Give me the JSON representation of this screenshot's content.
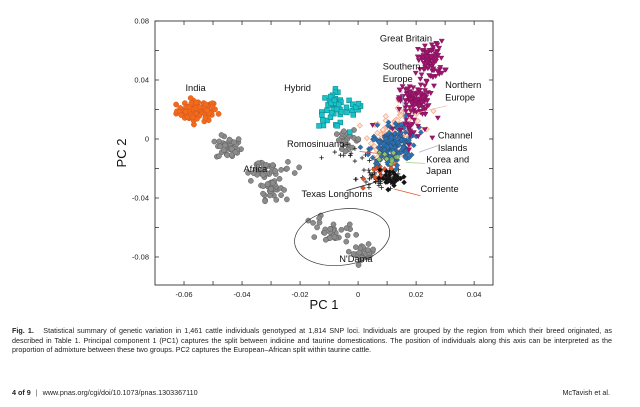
{
  "chart_data": {
    "type": "scatter",
    "title": "",
    "xlabel": "PC 1",
    "ylabel": "PC 2",
    "xlim": [
      -0.07,
      0.0465
    ],
    "ylim": [
      -0.099,
      0.08
    ],
    "grid": false,
    "xticks": [
      -0.06,
      -0.04,
      -0.02,
      0,
      0.02,
      0.04
    ],
    "xtick_labels": [
      "-0.06",
      "-0.04",
      "-0.02",
      "0",
      "0.02",
      "0.04"
    ],
    "xminor": [
      -0.05,
      -0.03,
      -0.01,
      0.01,
      0.03
    ],
    "yticks": [
      0.08,
      0.04,
      0,
      -0.04,
      -0.08
    ],
    "ytick_labels": [
      "0.08",
      "0.04",
      "0",
      "-0.04",
      "-0.08"
    ],
    "yminor": [
      0.06,
      0.02,
      -0.02,
      -0.06
    ],
    "series": [
      {
        "name": "India",
        "marker": "circle",
        "color": "#f26b1d",
        "clusters": [
          {
            "cx": -0.0555,
            "cy": 0.019,
            "sx": 0.0035,
            "sy": 0.0035,
            "n": 90
          }
        ]
      },
      {
        "name": "Africa",
        "marker": "circle",
        "color": "#8c8c8c",
        "clusters": [
          {
            "cx": -0.0445,
            "cy": -0.006,
            "sx": 0.0022,
            "sy": 0.004,
            "n": 40
          },
          {
            "cx": -0.0325,
            "cy": -0.02,
            "sx": 0.0025,
            "sy": 0.0035,
            "n": 30
          },
          {
            "cx": -0.03,
            "cy": -0.033,
            "sx": 0.002,
            "sy": 0.004,
            "n": 40
          },
          {
            "cx": -0.024,
            "cy": -0.02,
            "sx": 0.003,
            "sy": 0.002,
            "n": 8
          }
        ]
      },
      {
        "name": "N'Dama",
        "marker": "circle",
        "color": "#8c8c8c",
        "clusters": [
          {
            "cx": -0.009,
            "cy": -0.064,
            "sx": 0.003,
            "sy": 0.0035,
            "n": 30
          },
          {
            "cx": 0.002,
            "cy": -0.077,
            "sx": 0.0018,
            "sy": 0.0025,
            "n": 28
          },
          {
            "cx": -0.014,
            "cy": -0.055,
            "sx": 0.003,
            "sy": 0.004,
            "n": 6
          }
        ]
      },
      {
        "name": "Romosinuano",
        "marker": "circle",
        "color": "#8c8c8c",
        "clusters": [
          {
            "cx": -0.0035,
            "cy": -0.0005,
            "sx": 0.0022,
            "sy": 0.003,
            "n": 25
          }
        ]
      },
      {
        "name": "Hybrid",
        "marker": "square",
        "color": "#19c3c9",
        "clusters": [
          {
            "cx": -0.0085,
            "cy": 0.02,
            "sx": 0.0025,
            "sy": 0.006,
            "n": 45
          },
          {
            "cx": -0.001,
            "cy": 0.022,
            "sx": 0.0015,
            "sy": 0.005,
            "n": 12
          }
        ]
      },
      {
        "name": "Texas Longhorns",
        "marker": "plus",
        "color": "#222222",
        "clusters": [
          {
            "cx": 0.0075,
            "cy": -0.027,
            "sx": 0.004,
            "sy": 0.004,
            "n": 60
          },
          {
            "cx": -0.002,
            "cy": -0.01,
            "sx": 0.004,
            "sy": 0.003,
            "n": 14
          }
        ]
      },
      {
        "name": "Corriente",
        "marker": "diamond-filled",
        "color": "#e8532a",
        "clusters": [
          {
            "cx": 0.0085,
            "cy": -0.023,
            "sx": 0.003,
            "sy": 0.004,
            "n": 20
          }
        ]
      },
      {
        "name": "Southern Europe",
        "marker": "diamond-open",
        "color": "#f5a98a",
        "clusters": [
          {
            "cx": 0.012,
            "cy": 0.002,
            "sx": 0.004,
            "sy": 0.007,
            "n": 80
          },
          {
            "cx": 0.0165,
            "cy": 0.015,
            "sx": 0.003,
            "sy": 0.005,
            "n": 20
          }
        ]
      },
      {
        "name": "Channel Islands",
        "marker": "diamond-filled",
        "color": "#2a72b8",
        "clusters": [
          {
            "cx": 0.011,
            "cy": -0.007,
            "sx": 0.0035,
            "sy": 0.006,
            "n": 150
          },
          {
            "cx": 0.0145,
            "cy": 0.004,
            "sx": 0.003,
            "sy": 0.005,
            "n": 60
          }
        ]
      },
      {
        "name": "Korea and Japan",
        "marker": "diamond-filled",
        "color": "#8fc46a",
        "clusters": [
          {
            "cx": 0.009,
            "cy": -0.013,
            "sx": 0.002,
            "sy": 0.002,
            "n": 10
          }
        ]
      },
      {
        "name": "Northern Europe",
        "marker": "triangle-down",
        "color": "#a0166f",
        "clusters": [
          {
            "cx": 0.0195,
            "cy": 0.026,
            "sx": 0.0025,
            "sy": 0.005,
            "n": 110
          },
          {
            "cx": 0.025,
            "cy": 0.053,
            "sx": 0.0023,
            "sy": 0.0065,
            "n": 90
          },
          {
            "cx": 0.017,
            "cy": 0.007,
            "sx": 0.004,
            "sy": 0.006,
            "n": 25
          }
        ]
      },
      {
        "name": "Black admixed",
        "marker": "diamond-filled",
        "color": "#111111",
        "clusters": [
          {
            "cx": 0.0115,
            "cy": -0.0265,
            "sx": 0.0025,
            "sy": 0.0025,
            "n": 30
          }
        ]
      }
    ],
    "annotations": [
      {
        "text": "India",
        "x": -0.0595,
        "y": 0.0325,
        "line": null
      },
      {
        "text": "Hybrid",
        "x": -0.0255,
        "y": 0.0325,
        "line": null
      },
      {
        "text": "Great Britain",
        "x": 0.0075,
        "y": 0.066,
        "line": null
      },
      {
        "text": "Southern",
        "x": 0.0085,
        "y": 0.047,
        "line": [
          0.015,
          0.034,
          0.016,
          0.012
        ]
      },
      {
        "text": "Europe",
        "x": 0.0085,
        "y": 0.0385,
        "line": null
      },
      {
        "text": "Northern",
        "x": 0.03,
        "y": 0.0345,
        "line": [
          0.0305,
          0.0225,
          0.021,
          0.018
        ]
      },
      {
        "text": "Europe",
        "x": 0.03,
        "y": 0.026,
        "line": null
      },
      {
        "text": "Romosinuano",
        "x": -0.0245,
        "y": -0.0055,
        "line": [
          0.0005,
          -0.0085,
          0.008,
          -0.01
        ]
      },
      {
        "text": "Channel",
        "x": 0.0275,
        "y": 0.0005,
        "line": [
          0.0275,
          -0.0045,
          0.021,
          -0.009
        ]
      },
      {
        "text": "Islands",
        "x": 0.0275,
        "y": -0.008,
        "line": null
      },
      {
        "text": "Africa",
        "x": -0.0395,
        "y": -0.0225,
        "line": null
      },
      {
        "text": "Korea and",
        "x": 0.0235,
        "y": -0.0125,
        "line": [
          0.023,
          -0.0165,
          0.0165,
          -0.016
        ]
      },
      {
        "text": "Japan",
        "x": 0.0235,
        "y": -0.021,
        "line": null
      },
      {
        "text": "Texas Longhorns",
        "x": -0.0195,
        "y": -0.0395,
        "line": [
          -0.004,
          -0.035,
          0.0065,
          -0.029
        ]
      },
      {
        "text": "Corriente",
        "x": 0.0215,
        "y": -0.036,
        "line": [
          0.0215,
          -0.0385,
          0.0125,
          -0.034
        ]
      },
      {
        "text": "N'Dama",
        "x": -0.0065,
        "y": -0.0835,
        "line": null
      }
    ],
    "ellipse": {
      "label": "N'Dama",
      "cx": -0.0055,
      "cy": -0.0665,
      "rx": 0.0165,
      "ry": 0.019,
      "rotate": -8
    }
  },
  "caption": {
    "label": "Fig. 1.",
    "text": "Statistical summary of genetic variation in 1,461 cattle individuals genotyped at 1,814 SNP loci. Individuals are grouped by the region from which their breed originated, as described in Table 1. Principal component 1 (PC1) captures the split between indicine and taurine domestications. The position of individuals along this axis can be interpreted as the proportion of admixture between these two groups. PC2 captures the European–African split within taurine cattle."
  },
  "footer": {
    "page": "4 of 9",
    "separator": "|",
    "doi": "www.pnas.org/cgi/doi/10.1073/pnas.1303367110",
    "authors": "McTavish et al."
  }
}
